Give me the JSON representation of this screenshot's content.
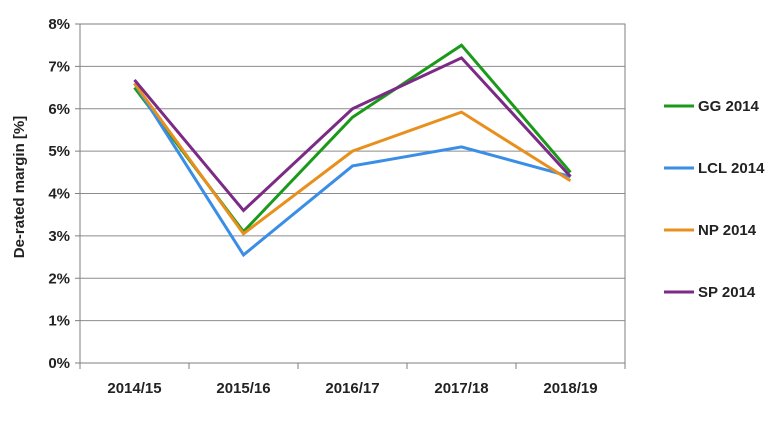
{
  "chart_data": {
    "type": "line",
    "title": "",
    "xlabel": "",
    "ylabel": "De-rated margin [%]",
    "categories": [
      "2014/15",
      "2015/16",
      "2016/17",
      "2017/18",
      "2018/19"
    ],
    "ylim": [
      0,
      8
    ],
    "yticks": [
      0,
      1,
      2,
      3,
      4,
      5,
      6,
      7,
      8
    ],
    "ytick_labels": [
      "0%",
      "1%",
      "2%",
      "3%",
      "4%",
      "5%",
      "6%",
      "7%",
      "8%"
    ],
    "grid": true,
    "legend_position": "right",
    "series": [
      {
        "name": "GG 2014",
        "color": "#1a9a1a",
        "values": [
          6.5,
          3.1,
          5.8,
          7.5,
          4.5
        ]
      },
      {
        "name": "LCL 2014",
        "color": "#3a8ee6",
        "values": [
          6.6,
          2.55,
          4.65,
          5.1,
          4.4
        ]
      },
      {
        "name": "NP 2014",
        "color": "#e8901e",
        "values": [
          6.6,
          3.05,
          5.0,
          5.92,
          4.3
        ]
      },
      {
        "name": "SP 2014",
        "color": "#7b2a86",
        "values": [
          6.68,
          3.6,
          6.0,
          7.2,
          4.4
        ]
      }
    ]
  }
}
